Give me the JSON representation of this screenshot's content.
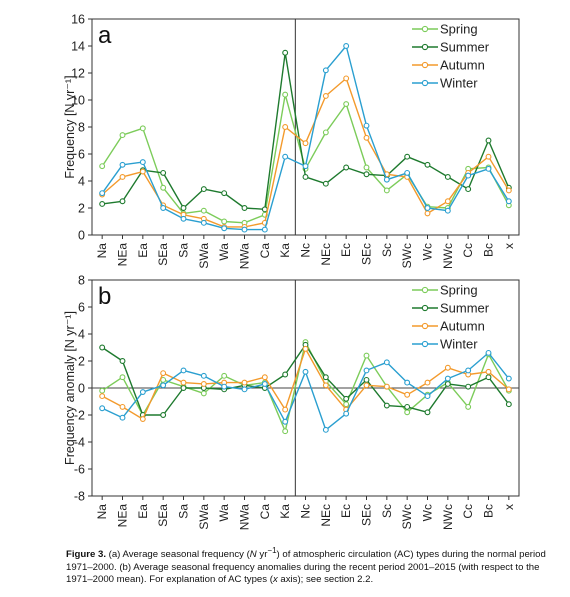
{
  "chart_data": [
    {
      "type": "line",
      "panel_label": "a",
      "ylabel": "Frequency [N yr⁻¹]",
      "xlabel": "",
      "ylim": [
        0,
        16
      ],
      "yticks": [
        0,
        2,
        4,
        6,
        8,
        10,
        12,
        14,
        16
      ],
      "categories": [
        "Na",
        "NEa",
        "Ea",
        "SEa",
        "Sa",
        "SWa",
        "Wa",
        "NWa",
        "Ca",
        "Ka",
        "Nc",
        "NEc",
        "Ec",
        "SEc",
        "Sc",
        "SWc",
        "Wc",
        "NWc",
        "Cc",
        "Bc",
        "x"
      ],
      "divider_after": "Ka",
      "grid": false,
      "legend": "top-right",
      "series": [
        {
          "name": "Spring",
          "color": "#7ccc5a",
          "values": [
            5.1,
            7.4,
            7.9,
            3.5,
            1.6,
            1.8,
            1.0,
            0.9,
            1.5,
            10.4,
            4.9,
            7.6,
            9.7,
            5.0,
            3.3,
            4.5,
            2.1,
            2.0,
            4.9,
            5.0,
            2.2
          ]
        },
        {
          "name": "Summer",
          "color": "#1e7a2e",
          "values": [
            2.3,
            2.5,
            4.8,
            4.6,
            2.0,
            3.4,
            3.1,
            2.0,
            1.9,
            13.5,
            4.3,
            3.8,
            5.0,
            4.5,
            4.4,
            5.8,
            5.2,
            4.3,
            3.4,
            7.0,
            3.5
          ]
        },
        {
          "name": "Autumn",
          "color": "#f39a2c",
          "values": [
            3.0,
            4.3,
            4.7,
            2.2,
            1.5,
            1.2,
            0.6,
            0.6,
            0.9,
            8.0,
            6.8,
            10.3,
            11.6,
            7.2,
            4.5,
            4.3,
            1.6,
            2.5,
            4.6,
            5.8,
            3.3
          ]
        },
        {
          "name": "Winter",
          "color": "#2a9fd0",
          "values": [
            3.1,
            5.2,
            5.4,
            2.0,
            1.2,
            0.9,
            0.5,
            0.4,
            0.4,
            5.8,
            5.1,
            12.2,
            14.0,
            8.1,
            4.1,
            4.6,
            2.0,
            1.8,
            4.4,
            4.9,
            2.5
          ]
        }
      ]
    },
    {
      "type": "line",
      "panel_label": "b",
      "ylabel": "Frequency anomaly [N yr⁻¹]",
      "xlabel": "",
      "ylim": [
        -8,
        8
      ],
      "yticks": [
        -8,
        -6,
        -4,
        -2,
        0,
        2,
        4,
        6,
        8
      ],
      "categories": [
        "Na",
        "NEa",
        "Ea",
        "SEa",
        "Sa",
        "SWa",
        "Wa",
        "NWa",
        "Ca",
        "Ka",
        "Nc",
        "NEc",
        "Ec",
        "SEc",
        "Sc",
        "SWc",
        "Wc",
        "NWc",
        "Cc",
        "Bc",
        "x"
      ],
      "divider_after": "Ka",
      "grid": false,
      "legend": "top-right",
      "series": [
        {
          "name": "Spring",
          "color": "#7ccc5a",
          "values": [
            -0.2,
            0.8,
            -2.0,
            0.6,
            0.1,
            -0.4,
            0.9,
            0.2,
            0.4,
            -3.2,
            3.4,
            0.5,
            -1.2,
            2.4,
            0.1,
            -1.8,
            -0.5,
            0.4,
            -1.4,
            2.5,
            -0.2
          ]
        },
        {
          "name": "Summer",
          "color": "#1e7a2e",
          "values": [
            3.0,
            2.0,
            -2.0,
            -2.0,
            0.0,
            0.0,
            -0.1,
            0.2,
            0.0,
            1.0,
            3.2,
            0.8,
            -0.8,
            0.6,
            -1.3,
            -1.4,
            -1.8,
            0.3,
            0.1,
            0.8,
            -1.2
          ]
        },
        {
          "name": "Autumn",
          "color": "#f39a2c",
          "values": [
            -0.6,
            -1.4,
            -2.3,
            1.1,
            0.4,
            0.3,
            0.4,
            0.4,
            0.8,
            -1.6,
            2.9,
            0.2,
            -1.6,
            0.2,
            0.1,
            -0.5,
            0.4,
            1.5,
            1.0,
            1.2,
            -0.1
          ]
        },
        {
          "name": "Winter",
          "color": "#2a9fd0",
          "values": [
            -1.5,
            -2.2,
            -0.3,
            0.2,
            1.3,
            0.9,
            0.1,
            -0.1,
            0.3,
            -2.5,
            1.2,
            -3.1,
            -1.9,
            1.3,
            1.9,
            0.4,
            -0.6,
            0.7,
            1.3,
            2.6,
            0.7
          ]
        }
      ]
    }
  ],
  "caption": {
    "label": "Figure 3.",
    "part1": " (a) Average seasonal frequency (",
    "unit_N": "N",
    "unit_yr": " yr",
    "unit_exp": "−1",
    "part2": ") of atmospheric circulation (AC) types during the normal period 1971–2000. (b) Average seasonal frequency anomalies during the recent period 2001–2015 (with respect to the 1971–2000 mean). For explanation of AC types (",
    "x_italic": "x",
    "part3": " axis); see section 2.2."
  }
}
